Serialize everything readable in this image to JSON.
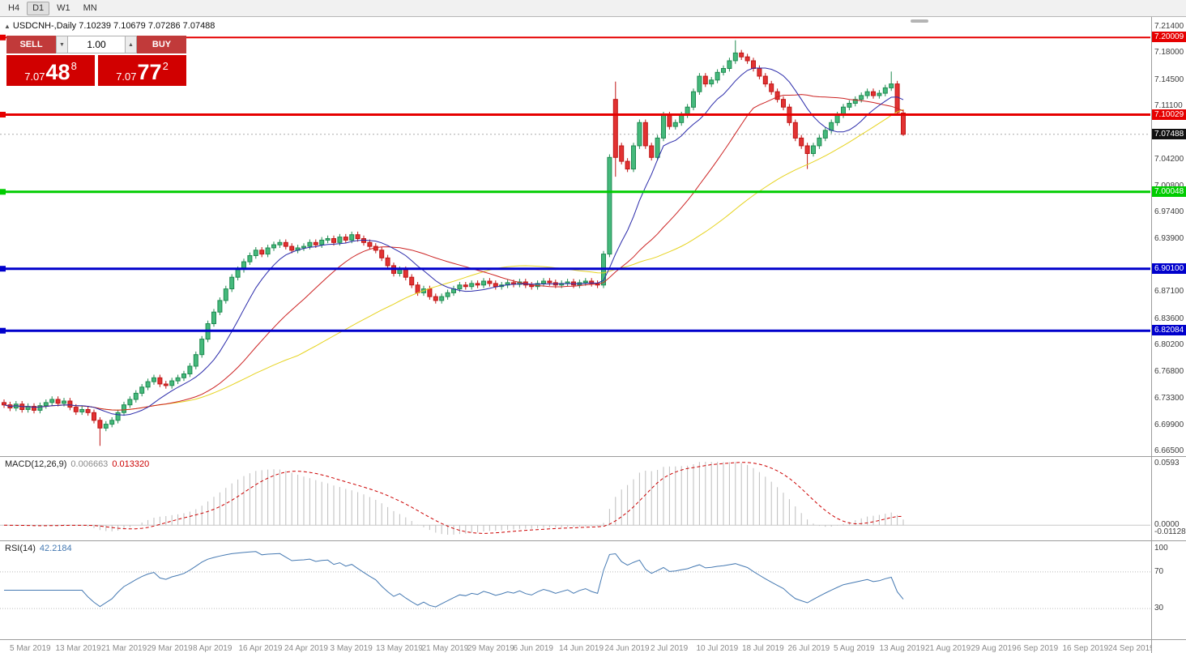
{
  "toolbar": {
    "timeframes": [
      {
        "label": "H4",
        "active": false
      },
      {
        "label": "D1",
        "active": true
      },
      {
        "label": "W1",
        "active": false
      },
      {
        "label": "MN",
        "active": false
      }
    ]
  },
  "icons": {
    "collapse_panel": "▲",
    "volume_down": "▼",
    "volume_up": "▲"
  },
  "trade": {
    "sell_label": "SELL",
    "buy_label": "BUY",
    "volume": "1.00",
    "sell": {
      "prefix": "7.07",
      "pips": "48",
      "point": "8"
    },
    "buy": {
      "prefix": "7.07",
      "pips": "77",
      "point": "2"
    }
  },
  "chart": {
    "title": {
      "text": "USDCNH-,Daily  7.10239 7.10679 7.07286 7.07488"
    },
    "axis_ticks": [
      "7.21400",
      "7.18000",
      "7.14500",
      "7.11100",
      "7.04200",
      "7.00800",
      "6.97400",
      "6.93900",
      "6.87100",
      "6.83600",
      "6.80200",
      "6.76800",
      "6.73300",
      "6.69900",
      "6.66500"
    ],
    "lines": [
      {
        "price": 7.20009,
        "label": "7.20009",
        "color": "#e60000",
        "width": 2
      },
      {
        "price": 7.10029,
        "label": "7.10029",
        "color": "#e60000",
        "width": 3
      },
      {
        "price": 7.00048,
        "label": "7.00048",
        "color": "#00cc00",
        "width": 3
      },
      {
        "price": 6.901,
        "label": "6.90100",
        "color": "#0000cc",
        "width": 3
      },
      {
        "price": 6.82084,
        "label": "6.82084",
        "color": "#0000cc",
        "width": 3
      }
    ],
    "current_price": {
      "value": 7.07488,
      "label": "7.07488",
      "bg": "#111111"
    }
  },
  "indicators": {
    "macd": {
      "name": "MACD(12,26,9)",
      "value_hist": "0.006663",
      "value_signal": "0.013320",
      "fast": 12,
      "slow": 26,
      "signal": 9,
      "scale_top": "0.0593",
      "scale_zero": "0.0000",
      "scale_bottom": "-0.011289"
    },
    "rsi": {
      "name": "RSI(14)",
      "value": "42.2184",
      "period": 14,
      "levels": [
        70,
        30
      ],
      "scale_labels": [
        "100",
        "70",
        "30"
      ]
    }
  },
  "colors": {
    "bull_fill": "#45b97c",
    "bull_stroke": "#1f8a50",
    "bear_fill": "#e23333",
    "bear_stroke": "#bf1414",
    "ma_fast": "#2a2aaa",
    "ma_mid": "#cc2222",
    "ma_slow": "#e6d31f",
    "macd_hist": "#bdbdbd",
    "macd_signal": "#cc0000",
    "rsi_line": "#4579b2",
    "trade_button_bg": "#c13a3a",
    "trade_price_bg": "#d10000",
    "current_line": "#aaaaaa"
  },
  "chart_data": {
    "type": "candlestick",
    "symbol": "USDCNH-",
    "timeframe": "Daily",
    "current_bar": {
      "open": 7.10239,
      "high": 7.10679,
      "low": 7.07286,
      "close": 7.07488
    },
    "price_axis_range": [
      6.665,
      7.214
    ],
    "first_open": 6.728,
    "default_wick": 0.004,
    "closes": [
      6.725,
      6.721,
      6.726,
      6.719,
      6.723,
      6.718,
      6.724,
      6.728,
      6.732,
      6.727,
      6.73,
      6.722,
      6.716,
      6.719,
      6.715,
      6.705,
      6.695,
      6.7,
      6.705,
      6.715,
      6.725,
      6.732,
      6.74,
      6.748,
      6.755,
      6.76,
      6.752,
      6.75,
      6.756,
      6.76,
      6.765,
      6.775,
      6.79,
      6.81,
      6.83,
      6.845,
      6.86,
      6.875,
      6.89,
      6.9,
      6.91,
      6.918,
      6.925,
      6.92,
      6.928,
      6.932,
      6.935,
      6.93,
      6.925,
      6.928,
      6.93,
      6.935,
      6.932,
      6.938,
      6.94,
      6.935,
      6.942,
      6.938,
      6.945,
      6.94,
      6.935,
      6.93,
      6.925,
      6.915,
      6.905,
      6.895,
      6.9,
      6.89,
      6.88,
      6.87,
      6.875,
      6.865,
      6.86,
      6.865,
      6.87,
      6.875,
      6.88,
      6.878,
      6.882,
      6.88,
      6.885,
      6.882,
      6.878,
      6.88,
      6.883,
      6.881,
      6.884,
      6.88,
      6.878,
      6.882,
      6.885,
      6.883,
      6.88,
      6.882,
      6.884,
      6.88,
      6.883,
      6.885,
      6.882,
      6.88,
      6.92,
      7.045,
      7.06,
      7.04,
      7.03,
      7.06,
      7.09,
      7.06,
      7.045,
      7.07,
      7.1,
      7.085,
      7.09,
      7.1,
      7.11,
      7.13,
      7.15,
      7.14,
      7.145,
      7.155,
      7.16,
      7.17,
      7.18,
      7.175,
      7.17,
      7.16,
      7.15,
      7.14,
      7.13,
      7.12,
      7.11,
      7.09,
      7.07,
      7.06,
      7.05,
      7.06,
      7.07,
      7.08,
      7.09,
      7.1,
      7.11,
      7.115,
      7.12,
      7.125,
      7.13,
      7.125,
      7.128,
      7.135,
      7.14,
      7.103,
      7.0749
    ],
    "overrides": {
      "16": {
        "l": 6.672
      },
      "102": {
        "o": 7.12,
        "c": 7.045,
        "h": 7.143,
        "l": 7.02
      },
      "122": {
        "h": 7.1965
      },
      "134": {
        "l": 7.03
      },
      "148": {
        "h": 7.156
      },
      "150": {
        "o": 7.10239,
        "h": 7.10679,
        "l": 7.07286,
        "c": 7.07488
      }
    },
    "time_labels": [
      "5 Mar 2019",
      "13 Mar 2019",
      "21 Mar 2019",
      "29 Mar 2019",
      "8 Apr 2019",
      "16 Apr 2019",
      "24 Apr 2019",
      "3 May 2019",
      "13 May 2019",
      "21 May 2019",
      "29 May 2019",
      "6 Jun 2019",
      "14 Jun 2019",
      "24 Jun 2019",
      "2 Jul 2019",
      "10 Jul 2019",
      "18 Jul 2019",
      "26 Jul 2019",
      "5 Aug 2019",
      "13 Aug 2019",
      "21 Aug 2019",
      "29 Aug 2019",
      "6 Sep 2019",
      "16 Sep 2019",
      "24 Sep 2019"
    ]
  }
}
